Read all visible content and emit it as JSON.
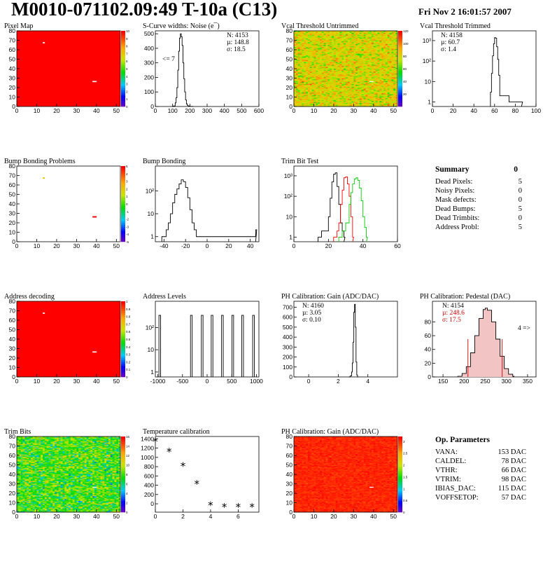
{
  "header": {
    "title": "M0010-071102.09:49 T-10a (C13)",
    "date": "Fri Nov  2 16:01:57 2007"
  },
  "panels": {
    "pixel_map": {
      "title": "Pixel Map",
      "palette": [
        0,
        1,
        2,
        3,
        4,
        5,
        6,
        7,
        8,
        9,
        10
      ]
    },
    "scurve": {
      "title": "S-Curve widths: Noise (e¯)",
      "stats": [
        "N: 4153",
        "µ: 148.8",
        "σ: 18.5"
      ],
      "note": "<= 7"
    },
    "vcal_untrimmed": {
      "title": "Vcal Threshold Untrimmed",
      "palette": [
        20,
        40,
        60,
        80,
        100,
        120
      ]
    },
    "vcal_trimmed": {
      "title": "Vcal Threshold Trimmed",
      "stats": [
        "N: 4158",
        "µ: 60.7",
        "σ:  1.4"
      ]
    },
    "bump_problems": {
      "title": "Bump Bonding Problems",
      "palette": [
        -5,
        -4,
        -3,
        -2,
        -1,
        0,
        1,
        2,
        3,
        4,
        5
      ]
    },
    "bump_bonding": {
      "title": "Bump Bonding"
    },
    "trim_bit_test": {
      "title": "Trim Bit Test"
    },
    "address_decoding": {
      "title": "Address decoding",
      "palette": [
        0,
        0.1,
        0.2,
        0.3,
        0.4,
        0.5,
        0.6,
        0.7,
        0.8,
        0.9,
        1
      ]
    },
    "address_levels": {
      "title": "Address Levels"
    },
    "ph_gain": {
      "title": "PH Calibration: Gain (ADC/DAC)",
      "stats": [
        "N: 4160",
        "µ: 3.05",
        "σ: 0.10"
      ]
    },
    "ph_pedestal": {
      "title": "PH Calibration: Pedestal (DAC)",
      "stats": [
        "N: 4154",
        "µ: 248.6",
        "σ: 17.5"
      ],
      "note": "4 =>"
    },
    "trim_bits": {
      "title": "Trim Bits",
      "palette": [
        0,
        2,
        4,
        6,
        8,
        10,
        12,
        14,
        16
      ]
    },
    "temperature": {
      "title": "Temperature calibration"
    },
    "ph_gain_map": {
      "title": "PH Calibration: Gain (ADC/DAC)",
      "palette": [
        0,
        0.5,
        1,
        1.5,
        2,
        2.5,
        3
      ]
    }
  },
  "summary": {
    "title": "Summary",
    "total": "0",
    "rows": [
      {
        "label": "Dead Pixels:",
        "value": "5"
      },
      {
        "label": "Noisy Pixels:",
        "value": "0"
      },
      {
        "label": "Mask defects:",
        "value": "0"
      },
      {
        "label": "Dead Bumps:",
        "value": "5"
      },
      {
        "label": "Dead Trimbits:",
        "value": "0"
      },
      {
        "label": "Address Probl:",
        "value": "5"
      }
    ]
  },
  "op_params": {
    "title": "Op. Parameters",
    "rows": [
      {
        "label": "VANA:",
        "value": "153 DAC"
      },
      {
        "label": "CALDEL:",
        "value": "78 DAC"
      },
      {
        "label": "VTHR:",
        "value": "66 DAC"
      },
      {
        "label": "VTRIM:",
        "value": "98 DAC"
      },
      {
        "label": "IBIAS_DAC:",
        "value": "115 DAC"
      },
      {
        "label": "VOFFSETOP:",
        "value": "57 DAC"
      }
    ]
  },
  "chart_data": [
    {
      "id": "pixel_map",
      "type": "heatmap",
      "title": "Pixel Map",
      "xlim": [
        0,
        52
      ],
      "ylim": [
        0,
        80
      ],
      "zlim": [
        0,
        10
      ],
      "xticks": [
        0,
        10,
        20,
        30,
        40,
        50
      ],
      "yticks": [
        0,
        10,
        20,
        30,
        40,
        50,
        60,
        70,
        80
      ],
      "fill_value": 10,
      "cells": [
        {
          "x": 13,
          "y": 67,
          "v": 0
        },
        {
          "x": 38,
          "y": 26,
          "v": 0
        },
        {
          "x": 39,
          "y": 26,
          "v": 0
        }
      ]
    },
    {
      "id": "scurve",
      "type": "line",
      "title": "S-Curve widths: Noise (e¯)",
      "xlim": [
        0,
        600
      ],
      "ylim": [
        0,
        520
      ],
      "xticks": [
        0,
        100,
        200,
        300,
        400,
        500,
        600
      ],
      "yticks": [
        0,
        100,
        200,
        300,
        400,
        500
      ],
      "x": [
        95,
        105,
        115,
        120,
        125,
        130,
        135,
        140,
        145,
        150,
        155,
        160,
        165,
        170,
        175,
        180,
        185,
        190,
        200,
        215
      ],
      "y": [
        0,
        4,
        25,
        60,
        130,
        250,
        380,
        470,
        500,
        480,
        420,
        300,
        190,
        100,
        45,
        18,
        8,
        3,
        1,
        0
      ]
    },
    {
      "id": "vcal_untrimmed",
      "type": "heatmap",
      "title": "Vcal Threshold Untrimmed",
      "xlim": [
        0,
        52
      ],
      "ylim": [
        0,
        80
      ],
      "zlim": [
        0,
        120
      ],
      "xticks": [
        0,
        10,
        20,
        30,
        40,
        50
      ],
      "yticks": [
        0,
        10,
        20,
        30,
        40,
        50,
        60,
        70,
        80
      ],
      "mean": 80,
      "spread": 15,
      "cells": [
        {
          "x": 38,
          "y": 26,
          "v": 0
        },
        {
          "x": 39,
          "y": 26,
          "v": 0
        }
      ]
    },
    {
      "id": "vcal_trimmed",
      "type": "line",
      "title": "Vcal Threshold Trimmed",
      "log": true,
      "xlim": [
        0,
        100
      ],
      "ylim": [
        0.6,
        3000
      ],
      "xticks": [
        0,
        20,
        40,
        60,
        80,
        100
      ],
      "yticks": [
        1,
        10,
        100,
        1000
      ],
      "yticklabels": [
        "1",
        "10",
        "10²",
        "10³"
      ],
      "x": [
        56,
        57,
        58,
        59,
        60,
        61,
        62,
        63,
        64,
        65,
        74,
        80,
        86
      ],
      "y": [
        3,
        25,
        180,
        700,
        1400,
        1300,
        500,
        120,
        20,
        2,
        1,
        1,
        1
      ]
    },
    {
      "id": "bump_problems",
      "type": "heatmap",
      "title": "Bump Bonding Problems",
      "xlim": [
        0,
        52
      ],
      "ylim": [
        0,
        80
      ],
      "zlim": [
        -5,
        5
      ],
      "xticks": [
        0,
        10,
        20,
        30,
        40,
        50
      ],
      "yticks": [
        0,
        10,
        20,
        30,
        40,
        50,
        60,
        70,
        80
      ],
      "cells": [
        {
          "x": 13,
          "y": 67,
          "v": 2
        },
        {
          "x": 38,
          "y": 26,
          "v": 5
        },
        {
          "x": 39,
          "y": 26,
          "v": 5
        }
      ]
    },
    {
      "id": "bump_bonding",
      "type": "line",
      "title": "Bump Bonding",
      "log": true,
      "xlim": [
        -48,
        48
      ],
      "ylim": [
        0.6,
        1200
      ],
      "xticks": [
        -40,
        -20,
        0,
        20,
        40
      ],
      "yticks": [
        1,
        10,
        100
      ],
      "yticklabels": [
        "1",
        "10",
        "10²"
      ],
      "x": [
        -42,
        -38,
        -36,
        -34,
        -32,
        -30,
        -28,
        -26,
        -24,
        -22,
        -20,
        -18,
        -16,
        -14,
        -12,
        -10,
        -8,
        -6,
        -4,
        45
      ],
      "y": [
        1,
        2,
        4,
        10,
        30,
        70,
        120,
        200,
        300,
        250,
        140,
        50,
        15,
        4,
        2,
        1,
        1,
        1,
        1,
        2
      ]
    },
    {
      "id": "trim_bit_test",
      "type": "line",
      "title": "Trim Bit Test",
      "log": true,
      "xlim": [
        0,
        60
      ],
      "ylim": [
        0.6,
        3000
      ],
      "xticks": [
        0,
        20,
        40,
        60
      ],
      "yticks": [
        1,
        10,
        100,
        1000
      ],
      "yticklabels": [
        "1",
        "10",
        "10²",
        "10³"
      ],
      "series": [
        {
          "color": "#000000",
          "x": [
            14,
            16,
            18,
            20,
            21,
            22,
            23,
            24,
            25,
            26,
            27,
            28,
            29
          ],
          "y": [
            1,
            2,
            2,
            10,
            80,
            500,
            1200,
            1400,
            300,
            40,
            5,
            2,
            1
          ]
        },
        {
          "color": "#ff0000",
          "x": [
            23,
            25,
            26,
            27,
            28,
            29,
            30,
            31,
            32,
            33,
            34
          ],
          "y": [
            1,
            2,
            5,
            40,
            200,
            800,
            900,
            400,
            100,
            10,
            1
          ]
        },
        {
          "color": "#00cc00",
          "x": [
            26,
            28,
            30,
            32,
            33,
            34,
            35,
            36,
            37,
            38,
            39,
            40,
            41,
            42
          ],
          "y": [
            1,
            2,
            5,
            40,
            150,
            400,
            700,
            800,
            600,
            250,
            60,
            10,
            3,
            1
          ]
        }
      ]
    },
    {
      "id": "address_decoding",
      "type": "heatmap",
      "title": "Address decoding",
      "xlim": [
        0,
        52
      ],
      "ylim": [
        0,
        80
      ],
      "zlim": [
        0,
        1
      ],
      "xticks": [
        0,
        10,
        20,
        30,
        40,
        50
      ],
      "yticks": [
        0,
        10,
        20,
        30,
        40,
        50,
        60,
        70,
        80
      ],
      "fill_value": 1,
      "cells": [
        {
          "x": 13,
          "y": 67,
          "v": 0
        },
        {
          "x": 38,
          "y": 26,
          "v": 0
        },
        {
          "x": 39,
          "y": 26,
          "v": 0
        }
      ]
    },
    {
      "id": "address_levels",
      "type": "bar",
      "title": "Address Levels",
      "log": true,
      "xlim": [
        -1050,
        1050
      ],
      "ylim": [
        0.6,
        1500
      ],
      "xticks": [
        -1000,
        -500,
        0,
        500,
        1000
      ],
      "yticks": [
        1,
        10,
        100
      ],
      "yticklabels": [
        "1",
        "10",
        "10²"
      ],
      "peaks": [
        -960,
        -320,
        -100,
        100,
        310,
        520,
        720,
        940
      ],
      "value": 350
    },
    {
      "id": "ph_gain",
      "type": "line",
      "title": "PH Calibration: Gain (ADC/DAC)",
      "xlim": [
        -1,
        6
      ],
      "ylim": [
        0,
        760
      ],
      "xticks": [
        0,
        2,
        4
      ],
      "yticks": [
        0,
        100,
        200,
        300,
        400,
        500,
        600,
        700
      ],
      "x": [
        2.7,
        2.8,
        2.9,
        2.95,
        3.0,
        3.05,
        3.1,
        3.15,
        3.2,
        3.25,
        3.3
      ],
      "y": [
        0,
        10,
        50,
        140,
        350,
        650,
        730,
        500,
        150,
        20,
        0
      ]
    },
    {
      "id": "ph_pedestal",
      "type": "area",
      "title": "PH Calibration: Pedestal (DAC)",
      "xlim": [
        125,
        370
      ],
      "ylim": [
        0,
        110
      ],
      "xticks": [
        150,
        200,
        250,
        300,
        350
      ],
      "yticks": [
        0,
        20,
        40,
        60,
        80
      ],
      "x": [
        185,
        195,
        205,
        215,
        225,
        235,
        245,
        250,
        255,
        265,
        275,
        285,
        295,
        305,
        315
      ],
      "y": [
        1,
        5,
        15,
        35,
        60,
        85,
        98,
        100,
        97,
        80,
        55,
        30,
        12,
        4,
        1
      ],
      "fit_range": [
        209,
        290
      ]
    },
    {
      "id": "trim_bits",
      "type": "heatmap",
      "title": "Trim Bits",
      "xlim": [
        0,
        52
      ],
      "ylim": [
        0,
        80
      ],
      "zlim": [
        0,
        16
      ],
      "xticks": [
        0,
        10,
        20,
        30,
        40,
        50
      ],
      "yticks": [
        0,
        10,
        20,
        30,
        40,
        50,
        60,
        70,
        80
      ],
      "mean": 8,
      "spread": 2.5,
      "cells": [
        {
          "x": 38,
          "y": 26,
          "v": 0
        },
        {
          "x": 39,
          "y": 26,
          "v": 0
        }
      ]
    },
    {
      "id": "temperature",
      "type": "scatter",
      "title": "Temperature calibration",
      "xlim": [
        0,
        7.5
      ],
      "ylim": [
        -180,
        1450
      ],
      "xticks": [
        0,
        2,
        4,
        6
      ],
      "yticks": [
        0,
        200,
        400,
        600,
        800,
        1000,
        1200,
        1400
      ],
      "x": [
        0,
        1,
        2,
        3,
        4,
        5,
        6,
        7
      ],
      "y": [
        1350,
        1130,
        820,
        440,
        -25,
        -60,
        -60,
        -60
      ]
    },
    {
      "id": "ph_gain_map",
      "type": "heatmap",
      "title": "PH Calibration: Gain (ADC/DAC)",
      "xlim": [
        0,
        52
      ],
      "ylim": [
        0,
        80
      ],
      "zlim": [
        0,
        3.2
      ],
      "xticks": [
        0,
        10,
        20,
        30,
        40,
        50
      ],
      "yticks": [
        0,
        10,
        20,
        30,
        40,
        50,
        60,
        70,
        80
      ],
      "mean": 3.05,
      "spread": 0.1,
      "cells": [
        {
          "x": 38,
          "y": 26,
          "v": 0
        },
        {
          "x": 39,
          "y": 26,
          "v": 0
        }
      ]
    }
  ]
}
